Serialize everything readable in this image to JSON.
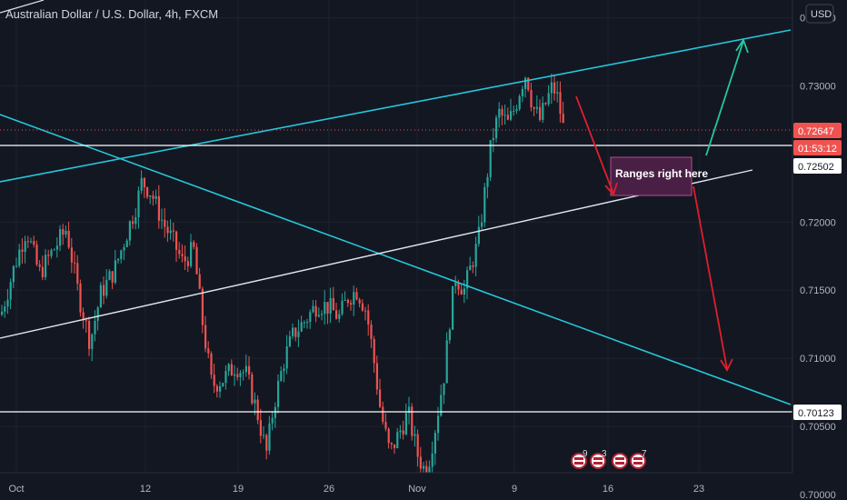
{
  "header": {
    "title": "Australian Dollar / U.S. Dollar, 4h, FXCM",
    "currency_button": "USD"
  },
  "colors": {
    "background": "#131722",
    "up_candle": "#26a69a",
    "down_candle": "#ef5350",
    "channel_line": "#26c6da",
    "trend_line_white": "#e0e3eb",
    "arrow_red": "#e01e2b",
    "arrow_green": "#26c6a0",
    "price_badge": "#ef5350",
    "annotation_fill": "#4a1f45",
    "annotation_border": "#b44d8a"
  },
  "chart_data": {
    "type": "candlestick",
    "title": "Australian Dollar / U.S. Dollar, 4h, FXCM",
    "xlabel": "",
    "ylabel": "",
    "ylim": [
      0.6996,
      0.7363
    ],
    "x_ticks": [
      "Oct",
      "12",
      "19",
      "26",
      "Nov",
      "9",
      "16",
      "23"
    ],
    "y_ticks": [
      "0.73500",
      "0.73000",
      "0.72000",
      "0.71500",
      "0.71000",
      "0.70500",
      "0.70000"
    ],
    "last_price": {
      "label": "0.72647",
      "value": 0.72647
    },
    "countdown": "01:53:12",
    "horizontal_levels": [
      {
        "label": "0.72502",
        "value": 0.72502
      },
      {
        "label": "0.70123",
        "value": 0.70123
      }
    ],
    "annotation": "Ranges right here",
    "event_markers": [
      {
        "count": "9"
      },
      {
        "count": "3"
      },
      {
        "count": ""
      },
      {
        "count": "7"
      }
    ],
    "grid": true
  }
}
